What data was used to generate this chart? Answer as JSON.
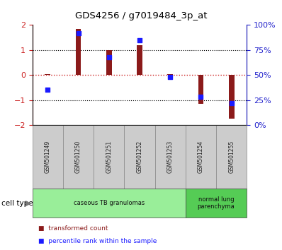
{
  "title": "GDS4256 / g7019484_3p_at",
  "samples": [
    "GSM501249",
    "GSM501250",
    "GSM501251",
    "GSM501252",
    "GSM501253",
    "GSM501254",
    "GSM501255"
  ],
  "transformed_count": [
    0.02,
    1.85,
    1.0,
    1.2,
    0.03,
    -1.15,
    -1.75
  ],
  "percentile_rank": [
    35,
    92,
    68,
    85,
    48,
    28,
    22
  ],
  "ylim_left": [
    -2,
    2
  ],
  "ylim_right": [
    0,
    100
  ],
  "bar_color": "#8B1A1A",
  "dot_color": "#1a1aff",
  "groups": [
    {
      "label": "caseous TB granulomas",
      "indices": [
        0,
        1,
        2,
        3,
        4
      ],
      "color": "#99ee99"
    },
    {
      "label": "normal lung\nparenchyma",
      "indices": [
        5,
        6
      ],
      "color": "#55cc55"
    }
  ],
  "left_axis_color": "#cc2222",
  "right_axis_color": "#2222cc",
  "cell_type_label": "cell type",
  "legend_items": [
    {
      "label": "transformed count",
      "color": "#8B1A1A"
    },
    {
      "label": "percentile rank within the sample",
      "color": "#1a1aff"
    }
  ]
}
